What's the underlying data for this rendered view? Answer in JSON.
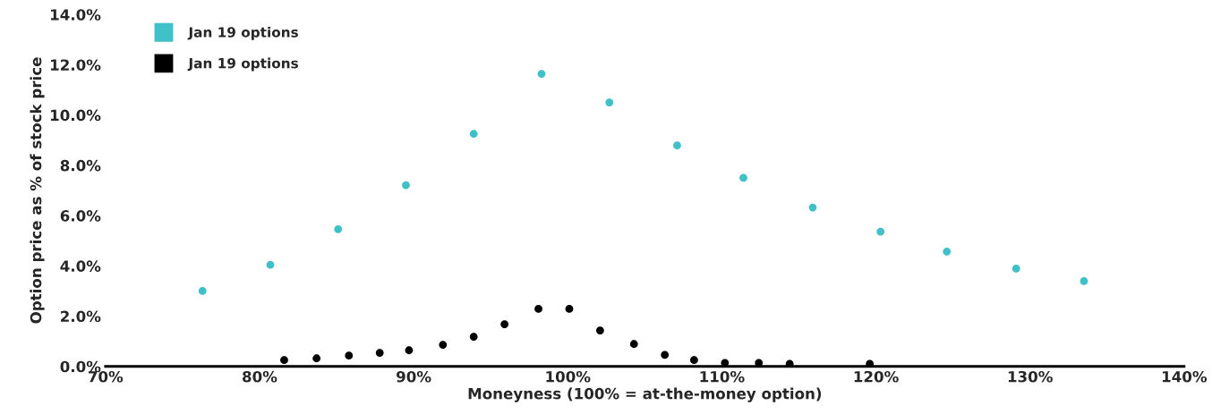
{
  "chart_data": {
    "type": "scatter",
    "xlabel": "Moneyness (100% = at-the-money option)",
    "ylabel": "Option price as % of stock price",
    "xlim": [
      70,
      140
    ],
    "ylim": [
      0,
      14
    ],
    "xticks": [
      {
        "value": 70,
        "label": "70%"
      },
      {
        "value": 80,
        "label": "80%"
      },
      {
        "value": 90,
        "label": "90%"
      },
      {
        "value": 100,
        "label": "100%"
      },
      {
        "value": 110,
        "label": "110%"
      },
      {
        "value": 120,
        "label": "120%"
      },
      {
        "value": 130,
        "label": "130%"
      },
      {
        "value": 140,
        "label": "140%"
      }
    ],
    "yticks": [
      {
        "value": 0,
        "label": "0.0%"
      },
      {
        "value": 2,
        "label": "2.0%"
      },
      {
        "value": 4,
        "label": "4.0%"
      },
      {
        "value": 6,
        "label": "6.0%"
      },
      {
        "value": 8,
        "label": "8.0%"
      },
      {
        "value": 10,
        "label": "10.0%"
      },
      {
        "value": 12,
        "label": "12.0%"
      },
      {
        "value": 14,
        "label": "14.0%"
      }
    ],
    "grid": false,
    "legend": "top left",
    "marker": "circle",
    "series": [
      {
        "name": "Jan 19 options",
        "color": "#40c1c8",
        "x": [
          76.3,
          80.7,
          85.1,
          89.5,
          93.9,
          98.3,
          102.7,
          107.1,
          111.4,
          115.9,
          120.3,
          124.6,
          129.1,
          133.5
        ],
        "values": [
          3.0,
          4.04,
          5.46,
          7.21,
          9.25,
          11.64,
          10.5,
          8.79,
          7.5,
          6.32,
          5.36,
          4.57,
          3.89,
          3.39
        ]
      },
      {
        "name": "Jan 19 options",
        "color": "#000000",
        "x": [
          81.6,
          83.7,
          85.8,
          87.8,
          89.7,
          91.9,
          93.9,
          95.9,
          98.1,
          100.1,
          102.1,
          104.3,
          106.3,
          108.2,
          110.2,
          112.4,
          114.4,
          119.6
        ],
        "values": [
          0.25,
          0.32,
          0.43,
          0.54,
          0.64,
          0.86,
          1.18,
          1.68,
          2.29,
          2.29,
          1.43,
          0.89,
          0.46,
          0.25,
          0.14,
          0.14,
          0.1,
          0.1
        ]
      }
    ]
  }
}
